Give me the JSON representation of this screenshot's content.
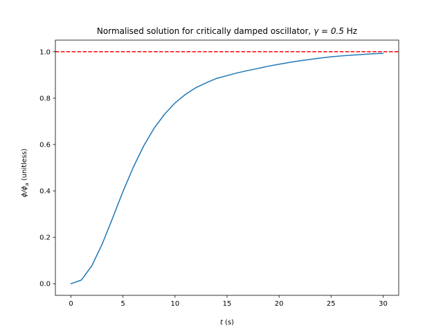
{
  "chart_data": {
    "type": "line",
    "title_text": "Normalised solution for critically damped oscillator, ",
    "title_math": "γ = 0.5",
    "title_unit": " Hz",
    "xlabel_var": "t",
    "xlabel_unit": " (s)",
    "ylabel_num": "ϕ/ϕ",
    "ylabel_sub": "a",
    "ylabel_unit": " (unitless)",
    "xlim": [
      -1.5,
      31.5
    ],
    "ylim": [
      -0.05,
      1.05
    ],
    "xticks": [
      0,
      5,
      10,
      15,
      20,
      25,
      30
    ],
    "xtick_labels": [
      "0",
      "5",
      "10",
      "15",
      "20",
      "25",
      "30"
    ],
    "yticks": [
      0.0,
      0.2,
      0.4,
      0.6,
      0.8,
      1.0
    ],
    "ytick_labels": [
      "0.0",
      "0.2",
      "0.4",
      "0.6",
      "0.8",
      "1.0"
    ],
    "grid": false,
    "series": [
      {
        "color": "#1f77b4",
        "style": "solid",
        "x": [
          0,
          1,
          2,
          3,
          4,
          5,
          6,
          7,
          8,
          9,
          10,
          11,
          12,
          13,
          14,
          15,
          16,
          17,
          18,
          19,
          20,
          21,
          22,
          23,
          24,
          25,
          26,
          27,
          28,
          29,
          30
        ],
        "y": [
          0.0,
          0.016,
          0.077,
          0.171,
          0.283,
          0.398,
          0.503,
          0.595,
          0.671,
          0.731,
          0.779,
          0.816,
          0.845,
          0.866,
          0.885,
          0.897,
          0.909,
          0.919,
          0.928,
          0.938,
          0.946,
          0.954,
          0.961,
          0.967,
          0.973,
          0.978,
          0.982,
          0.985,
          0.988,
          0.991,
          0.993
        ]
      }
    ],
    "hlines": [
      {
        "y": 1.0,
        "color": "#ff0000",
        "style": "dashed"
      }
    ]
  }
}
